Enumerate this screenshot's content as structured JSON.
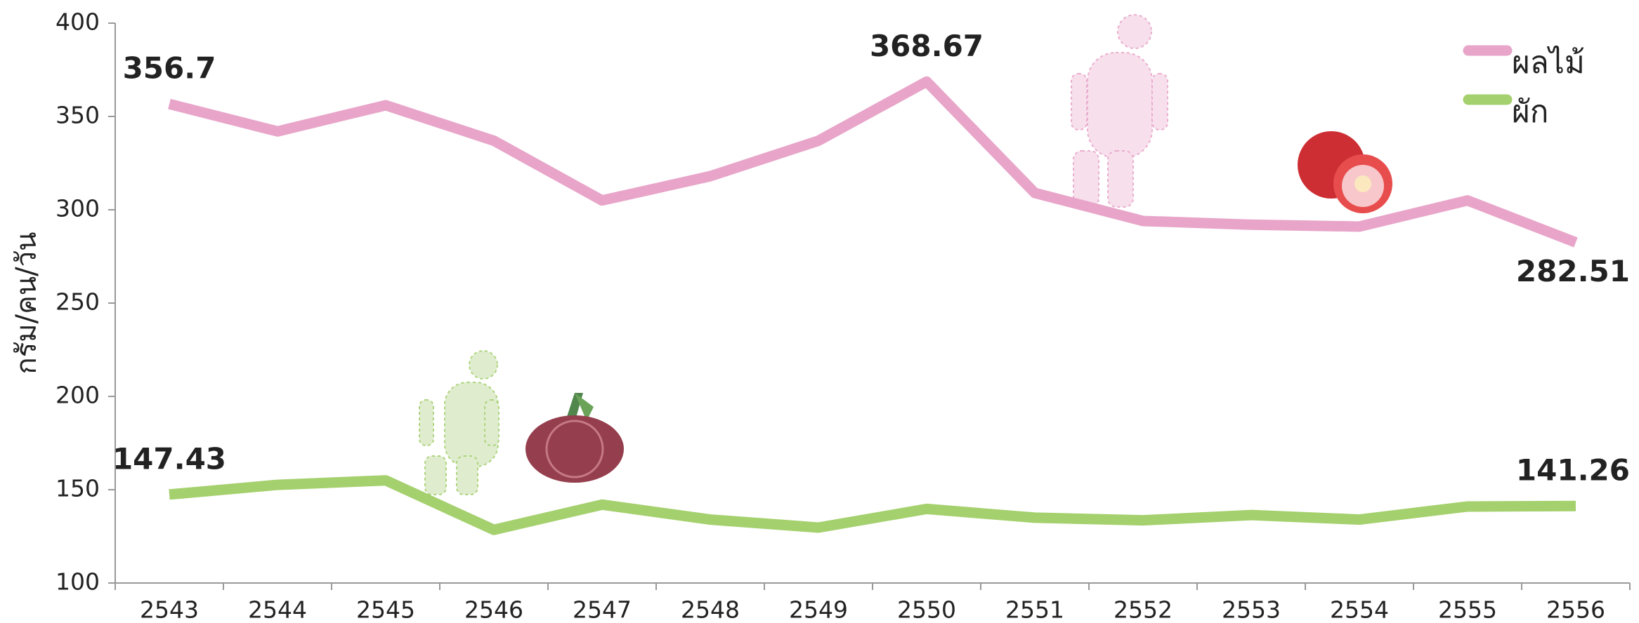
{
  "chart_data": {
    "type": "line",
    "y_label": "กรัม/คน/วัน",
    "categories": [
      "2543",
      "2544",
      "2545",
      "2546",
      "2547",
      "2548",
      "2549",
      "2550",
      "2551",
      "2552",
      "2553",
      "2554",
      "2555",
      "2556"
    ],
    "series": [
      {
        "name": "ผลไม้",
        "color": "#e8a5c9",
        "label_color": "#d6559a",
        "values": [
          356.7,
          342,
          356,
          337,
          305,
          318,
          337,
          368.67,
          309,
          294,
          292,
          291,
          305,
          282.51
        ],
        "value_labels": [
          "356.7",
          null,
          null,
          null,
          null,
          null,
          null,
          "368.67",
          null,
          null,
          null,
          null,
          null,
          "282.51"
        ]
      },
      {
        "name": "ผัก",
        "color": "#a5d06e",
        "label_color": "#8dbf3f",
        "values": [
          147.43,
          152.6,
          155,
          128.5,
          142,
          134,
          129.7,
          139.7,
          135,
          133.6,
          136.4,
          134,
          141,
          141.26
        ],
        "value_labels": [
          "147.43",
          null,
          null,
          null,
          null,
          null,
          null,
          null,
          null,
          null,
          null,
          null,
          null,
          "141.26"
        ]
      }
    ],
    "ylim": [
      100,
      400
    ],
    "yticks": [
      100,
      150,
      200,
      250,
      300,
      350,
      400
    ],
    "grid": false,
    "legend": "upper right"
  }
}
